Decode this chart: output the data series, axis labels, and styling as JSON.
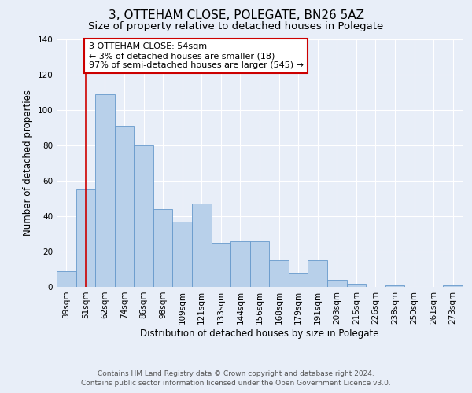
{
  "title": "3, OTTEHAM CLOSE, POLEGATE, BN26 5AZ",
  "subtitle": "Size of property relative to detached houses in Polegate",
  "xlabel": "Distribution of detached houses by size in Polegate",
  "ylabel": "Number of detached properties",
  "categories": [
    "39sqm",
    "51sqm",
    "62sqm",
    "74sqm",
    "86sqm",
    "98sqm",
    "109sqm",
    "121sqm",
    "133sqm",
    "144sqm",
    "156sqm",
    "168sqm",
    "179sqm",
    "191sqm",
    "203sqm",
    "215sqm",
    "226sqm",
    "238sqm",
    "250sqm",
    "261sqm",
    "273sqm"
  ],
  "values": [
    9,
    55,
    109,
    91,
    80,
    44,
    37,
    47,
    25,
    26,
    26,
    15,
    8,
    15,
    4,
    2,
    0,
    1,
    0,
    0,
    1
  ],
  "bar_color": "#b8d0ea",
  "bar_edge_color": "#6699cc",
  "bar_edge_width": 0.6,
  "ylim": [
    0,
    140
  ],
  "yticks": [
    0,
    20,
    40,
    60,
    80,
    100,
    120,
    140
  ],
  "vline_x_index": 1,
  "vline_color": "#cc0000",
  "annotation_text": "3 OTTEHAM CLOSE: 54sqm\n← 3% of detached houses are smaller (18)\n97% of semi-detached houses are larger (545) →",
  "annotation_box_facecolor": "#ffffff",
  "annotation_box_edgecolor": "#cc0000",
  "footer_line1": "Contains HM Land Registry data © Crown copyright and database right 2024.",
  "footer_line2": "Contains public sector information licensed under the Open Government Licence v3.0.",
  "bg_color": "#e8eef8",
  "plot_bg_color": "#e8eef8",
  "title_fontsize": 11,
  "subtitle_fontsize": 9.5,
  "axis_label_fontsize": 8.5,
  "tick_fontsize": 7.5,
  "annotation_fontsize": 8,
  "footer_fontsize": 6.5
}
